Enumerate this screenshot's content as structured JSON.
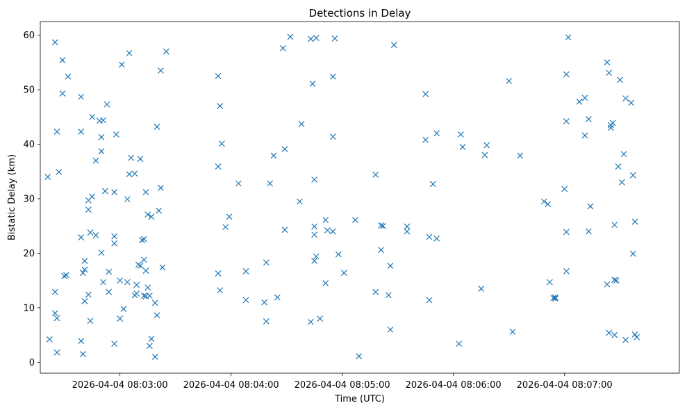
{
  "chart_data": {
    "type": "scatter",
    "title": "Detections in Delay",
    "xlabel": "Time (UTC)",
    "ylabel": "Bistatic Delay (km)",
    "date": "2026-04-04",
    "xlim": [
      "08:02:17",
      "08:08:02"
    ],
    "ylim": [
      -2,
      62.5
    ],
    "x_ticks": [
      "08:03:00",
      "08:04:00",
      "08:05:00",
      "08:06:00",
      "08:07:00"
    ],
    "x_tick_labels": [
      "2026-04-04 08:03:00",
      "2026-04-04 08:04:00",
      "2026-04-04 08:05:00",
      "2026-04-04 08:06:00",
      "2026-04-04 08:07:00"
    ],
    "y_ticks": [
      0,
      10,
      20,
      30,
      40,
      50,
      60
    ],
    "y_tick_labels": [
      "0",
      "10",
      "20",
      "30",
      "40",
      "50",
      "60"
    ],
    "marker": "x",
    "color": "#1f77b4",
    "grid": false,
    "points": [
      [
        "08:02:21",
        34.0
      ],
      [
        "08:02:22",
        4.2
      ],
      [
        "08:02:25",
        58.7
      ],
      [
        "08:02:25",
        12.9
      ],
      [
        "08:02:25",
        9.0
      ],
      [
        "08:02:26",
        8.1
      ],
      [
        "08:02:26",
        1.8
      ],
      [
        "08:02:26",
        42.3
      ],
      [
        "08:02:27",
        34.9
      ],
      [
        "08:02:29",
        55.4
      ],
      [
        "08:02:29",
        49.3
      ],
      [
        "08:02:30",
        15.8
      ],
      [
        "08:02:32",
        52.4
      ],
      [
        "08:02:31",
        16.0
      ],
      [
        "08:02:39",
        48.7
      ],
      [
        "08:02:39",
        42.3
      ],
      [
        "08:02:39",
        22.9
      ],
      [
        "08:02:39",
        3.9
      ],
      [
        "08:02:40",
        16.4
      ],
      [
        "08:02:40",
        1.5
      ],
      [
        "08:02:41",
        18.6
      ],
      [
        "08:02:41",
        17.0
      ],
      [
        "08:02:41",
        11.2
      ],
      [
        "08:02:43",
        29.7
      ],
      [
        "08:02:43",
        28.0
      ],
      [
        "08:02:43",
        12.4
      ],
      [
        "08:02:44",
        7.6
      ],
      [
        "08:02:44",
        23.8
      ],
      [
        "08:02:45",
        45.0
      ],
      [
        "08:02:45",
        30.4
      ],
      [
        "08:02:47",
        23.3
      ],
      [
        "08:02:47",
        37.0
      ],
      [
        "08:02:49",
        44.3
      ],
      [
        "08:02:50",
        41.3
      ],
      [
        "08:02:50",
        38.7
      ],
      [
        "08:02:50",
        20.1
      ],
      [
        "08:02:51",
        14.7
      ],
      [
        "08:02:51",
        44.4
      ],
      [
        "08:02:52",
        31.4
      ],
      [
        "08:02:53",
        47.3
      ],
      [
        "08:02:54",
        16.6
      ],
      [
        "08:02:54",
        12.9
      ],
      [
        "08:02:57",
        31.2
      ],
      [
        "08:02:57",
        21.8
      ],
      [
        "08:02:57",
        23.1
      ],
      [
        "08:02:58",
        41.8
      ],
      [
        "08:02:57",
        3.4
      ],
      [
        "08:03:00",
        15.0
      ],
      [
        "08:03:00",
        8.0
      ],
      [
        "08:03:01",
        54.6
      ],
      [
        "08:03:02",
        9.8
      ],
      [
        "08:03:04",
        29.9
      ],
      [
        "08:03:04",
        14.7
      ],
      [
        "08:03:05",
        56.7
      ],
      [
        "08:03:05",
        34.5
      ],
      [
        "08:03:06",
        37.5
      ],
      [
        "08:03:08",
        34.6
      ],
      [
        "08:03:08",
        12.3
      ],
      [
        "08:03:09",
        14.2
      ],
      [
        "08:03:09",
        12.6
      ],
      [
        "08:03:10",
        17.9
      ],
      [
        "08:03:11",
        17.7
      ],
      [
        "08:03:11",
        37.3
      ],
      [
        "08:03:12",
        22.4
      ],
      [
        "08:03:13",
        12.2
      ],
      [
        "08:03:13",
        22.6
      ],
      [
        "08:03:13",
        18.8
      ],
      [
        "08:03:14",
        16.8
      ],
      [
        "08:03:14",
        31.2
      ],
      [
        "08:03:14",
        12.1
      ],
      [
        "08:03:15",
        13.7
      ],
      [
        "08:03:15",
        27.1
      ],
      [
        "08:03:16",
        3.0
      ],
      [
        "08:03:16",
        12.2
      ],
      [
        "08:03:17",
        4.3
      ],
      [
        "08:03:17",
        26.7
      ],
      [
        "08:03:19",
        10.9
      ],
      [
        "08:03:19",
        1.0
      ],
      [
        "08:03:20",
        43.2
      ],
      [
        "08:03:20",
        8.6
      ],
      [
        "08:03:21",
        27.8
      ],
      [
        "08:03:22",
        53.5
      ],
      [
        "08:03:22",
        32.0
      ],
      [
        "08:03:23",
        17.4
      ],
      [
        "08:03:25",
        57.0
      ],
      [
        "08:03:53",
        52.5
      ],
      [
        "08:03:53",
        35.9
      ],
      [
        "08:03:53",
        16.3
      ],
      [
        "08:03:54",
        47.0
      ],
      [
        "08:03:54",
        13.2
      ],
      [
        "08:03:55",
        40.1
      ],
      [
        "08:03:57",
        24.8
      ],
      [
        "08:03:59",
        26.7
      ],
      [
        "08:04:04",
        32.8
      ],
      [
        "08:04:08",
        11.4
      ],
      [
        "08:04:08",
        16.7
      ],
      [
        "08:04:18",
        11.0
      ],
      [
        "08:04:19",
        18.3
      ],
      [
        "08:04:19",
        7.5
      ],
      [
        "08:04:21",
        32.8
      ],
      [
        "08:04:23",
        37.9
      ],
      [
        "08:04:25",
        11.9
      ],
      [
        "08:04:28",
        57.6
      ],
      [
        "08:04:29",
        24.3
      ],
      [
        "08:04:29",
        39.1
      ],
      [
        "08:04:32",
        59.7
      ],
      [
        "08:04:37",
        29.5
      ],
      [
        "08:04:38",
        43.7
      ],
      [
        "08:04:43",
        59.3
      ],
      [
        "08:04:43",
        7.4
      ],
      [
        "08:04:44",
        51.1
      ],
      [
        "08:04:45",
        24.9
      ],
      [
        "08:04:45",
        23.4
      ],
      [
        "08:04:45",
        33.5
      ],
      [
        "08:04:45",
        18.6
      ],
      [
        "08:04:46",
        19.4
      ],
      [
        "08:04:46",
        59.5
      ],
      [
        "08:04:48",
        8.0
      ],
      [
        "08:04:51",
        14.5
      ],
      [
        "08:04:51",
        26.1
      ],
      [
        "08:04:52",
        24.2
      ],
      [
        "08:04:55",
        24.0
      ],
      [
        "08:04:55",
        41.4
      ],
      [
        "08:04:55",
        52.4
      ],
      [
        "08:04:56",
        59.4
      ],
      [
        "08:04:58",
        19.8
      ],
      [
        "08:05:01",
        16.4
      ],
      [
        "08:05:07",
        26.1
      ],
      [
        "08:05:09",
        1.1
      ],
      [
        "08:05:18",
        34.4
      ],
      [
        "08:05:18",
        12.9
      ],
      [
        "08:05:21",
        20.6
      ],
      [
        "08:05:21",
        25.1
      ],
      [
        "08:05:22",
        25.0
      ],
      [
        "08:05:25",
        12.3
      ],
      [
        "08:05:26",
        17.7
      ],
      [
        "08:05:26",
        6.0
      ],
      [
        "08:05:28",
        58.2
      ],
      [
        "08:05:35",
        24.0
      ],
      [
        "08:05:35",
        24.9
      ],
      [
        "08:05:45",
        49.2
      ],
      [
        "08:05:45",
        40.8
      ],
      [
        "08:05:47",
        11.4
      ],
      [
        "08:05:47",
        23.0
      ],
      [
        "08:05:49",
        32.7
      ],
      [
        "08:05:51",
        42.0
      ],
      [
        "08:05:51",
        22.7
      ],
      [
        "08:06:03",
        3.4
      ],
      [
        "08:06:04",
        41.8
      ],
      [
        "08:06:05",
        39.5
      ],
      [
        "08:06:15",
        13.5
      ],
      [
        "08:06:17",
        38.0
      ],
      [
        "08:06:18",
        39.8
      ],
      [
        "08:06:30",
        51.6
      ],
      [
        "08:06:32",
        5.6
      ],
      [
        "08:06:36",
        37.9
      ],
      [
        "08:06:49",
        29.5
      ],
      [
        "08:06:51",
        29.0
      ],
      [
        "08:06:52",
        14.7
      ],
      [
        "08:06:54",
        11.8
      ],
      [
        "08:06:55",
        11.7
      ],
      [
        "08:06:55",
        11.9
      ],
      [
        "08:07:00",
        31.8
      ],
      [
        "08:07:01",
        23.9
      ],
      [
        "08:07:01",
        16.7
      ],
      [
        "08:07:01",
        44.2
      ],
      [
        "08:07:01",
        52.8
      ],
      [
        "08:07:02",
        59.6
      ],
      [
        "08:07:08",
        47.8
      ],
      [
        "08:07:11",
        41.6
      ],
      [
        "08:07:11",
        48.5
      ],
      [
        "08:07:13",
        44.6
      ],
      [
        "08:07:13",
        24.0
      ],
      [
        "08:07:14",
        28.6
      ],
      [
        "08:07:23",
        55.0
      ],
      [
        "08:07:23",
        14.3
      ],
      [
        "08:07:24",
        5.4
      ],
      [
        "08:07:24",
        53.1
      ],
      [
        "08:07:25",
        43.5
      ],
      [
        "08:07:25",
        43.0
      ],
      [
        "08:07:26",
        43.9
      ],
      [
        "08:07:27",
        25.2
      ],
      [
        "08:07:27",
        15.1
      ],
      [
        "08:07:28",
        15.0
      ],
      [
        "08:07:27",
        5.0
      ],
      [
        "08:07:29",
        35.9
      ],
      [
        "08:07:30",
        51.8
      ],
      [
        "08:07:31",
        33.0
      ],
      [
        "08:07:32",
        38.2
      ],
      [
        "08:07:33",
        4.1
      ],
      [
        "08:07:33",
        48.4
      ],
      [
        "08:07:36",
        47.6
      ],
      [
        "08:07:37",
        34.3
      ],
      [
        "08:07:37",
        19.9
      ],
      [
        "08:07:38",
        25.8
      ],
      [
        "08:07:38",
        5.1
      ],
      [
        "08:07:39",
        4.6
      ]
    ]
  }
}
